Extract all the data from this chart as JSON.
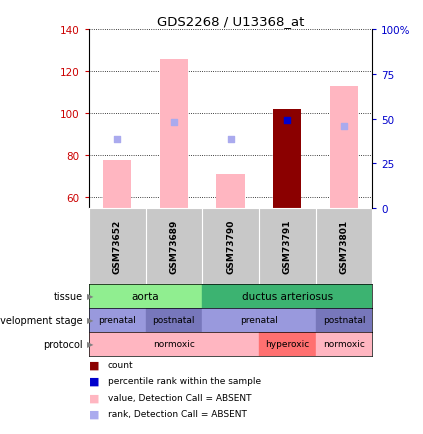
{
  "title": "GDS2268 / U13368_at",
  "samples": [
    "GSM73652",
    "GSM73689",
    "GSM73790",
    "GSM73791",
    "GSM73801"
  ],
  "ylim_left": [
    55,
    140
  ],
  "ylim_right": [
    0,
    100
  ],
  "yticks_left": [
    60,
    80,
    100,
    120,
    140
  ],
  "yticks_right": [
    0,
    25,
    50,
    75,
    100
  ],
  "ytick_labels_right": [
    "0",
    "25",
    "50",
    "75",
    "100%"
  ],
  "value_bars": [
    78,
    126,
    71,
    102,
    113
  ],
  "rank_dots": [
    88,
    96,
    88,
    97,
    94
  ],
  "is_absent": [
    true,
    true,
    true,
    false,
    true
  ],
  "tissue_groups": [
    {
      "label": "aorta",
      "start": 0,
      "end": 2,
      "color": "#90EE90"
    },
    {
      "label": "ductus arteriosus",
      "start": 2,
      "end": 5,
      "color": "#3CB371"
    }
  ],
  "dev_stage_groups": [
    {
      "label": "prenatal",
      "start": 0,
      "end": 1,
      "color": "#9999DD"
    },
    {
      "label": "postnatal",
      "start": 1,
      "end": 2,
      "color": "#7777BB"
    },
    {
      "label": "prenatal",
      "start": 2,
      "end": 4,
      "color": "#9999DD"
    },
    {
      "label": "postnatal",
      "start": 4,
      "end": 5,
      "color": "#7777BB"
    }
  ],
  "protocol_groups": [
    {
      "label": "normoxic",
      "start": 0,
      "end": 3,
      "color": "#FFB6C1"
    },
    {
      "label": "hyperoxic",
      "start": 3,
      "end": 4,
      "color": "#FF7070"
    },
    {
      "label": "normoxic",
      "start": 4,
      "end": 5,
      "color": "#FFB6C1"
    }
  ],
  "bar_color_absent": "#FFB6C1",
  "bar_color_present": "#8B0000",
  "dot_color_absent": "#AAAAEE",
  "dot_color_present": "#0000CC",
  "left_tick_color": "#CC0000",
  "right_tick_color": "#0000CC",
  "sample_bg_color": "#C8C8C8",
  "legend_items": [
    {
      "color": "#8B0000",
      "label": "count"
    },
    {
      "color": "#0000CC",
      "label": "percentile rank within the sample"
    },
    {
      "color": "#FFB6C1",
      "label": "value, Detection Call = ABSENT"
    },
    {
      "color": "#AAAAEE",
      "label": "rank, Detection Call = ABSENT"
    }
  ]
}
